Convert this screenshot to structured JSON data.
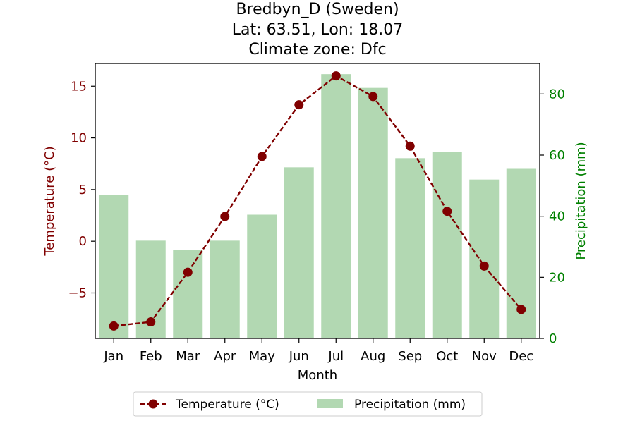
{
  "chart_data": {
    "type": "bar+line",
    "title_lines": [
      "Bredbyn_D (Sweden)",
      "Lat: 63.51, Lon: 18.07",
      "Climate zone: Dfc"
    ],
    "xlabel": "Month",
    "categories": [
      "Jan",
      "Feb",
      "Mar",
      "Apr",
      "May",
      "Jun",
      "Jul",
      "Aug",
      "Sep",
      "Oct",
      "Nov",
      "Dec"
    ],
    "temperature": {
      "name": "Temperature (°C)",
      "axis_label": "Temperature (°C)",
      "values": [
        -8.2,
        -7.8,
        -3.0,
        2.4,
        8.2,
        13.2,
        16.0,
        14.0,
        9.2,
        2.9,
        -2.4,
        -6.6
      ],
      "ylim": [
        -9.4,
        17.2
      ],
      "ticks": [
        -5,
        0,
        5,
        10,
        15
      ],
      "tick_labels": [
        "−5",
        "0",
        "5",
        "10",
        "15"
      ],
      "color": "#800000",
      "style": "dashed-with-markers"
    },
    "precipitation": {
      "name": "Precipitation (mm)",
      "axis_label": "Precipitation (mm)",
      "values": [
        47,
        32,
        29,
        32,
        40.5,
        56,
        86.5,
        82,
        59,
        61,
        52,
        55.5
      ],
      "ylim": [
        0,
        90
      ],
      "ticks": [
        0,
        20,
        40,
        60,
        80
      ],
      "tick_labels": [
        "0",
        "20",
        "40",
        "60",
        "80"
      ],
      "color": "#008000",
      "bar_color": "#b2d8b2"
    },
    "legend_position": "bottom-center",
    "grid": false
  }
}
